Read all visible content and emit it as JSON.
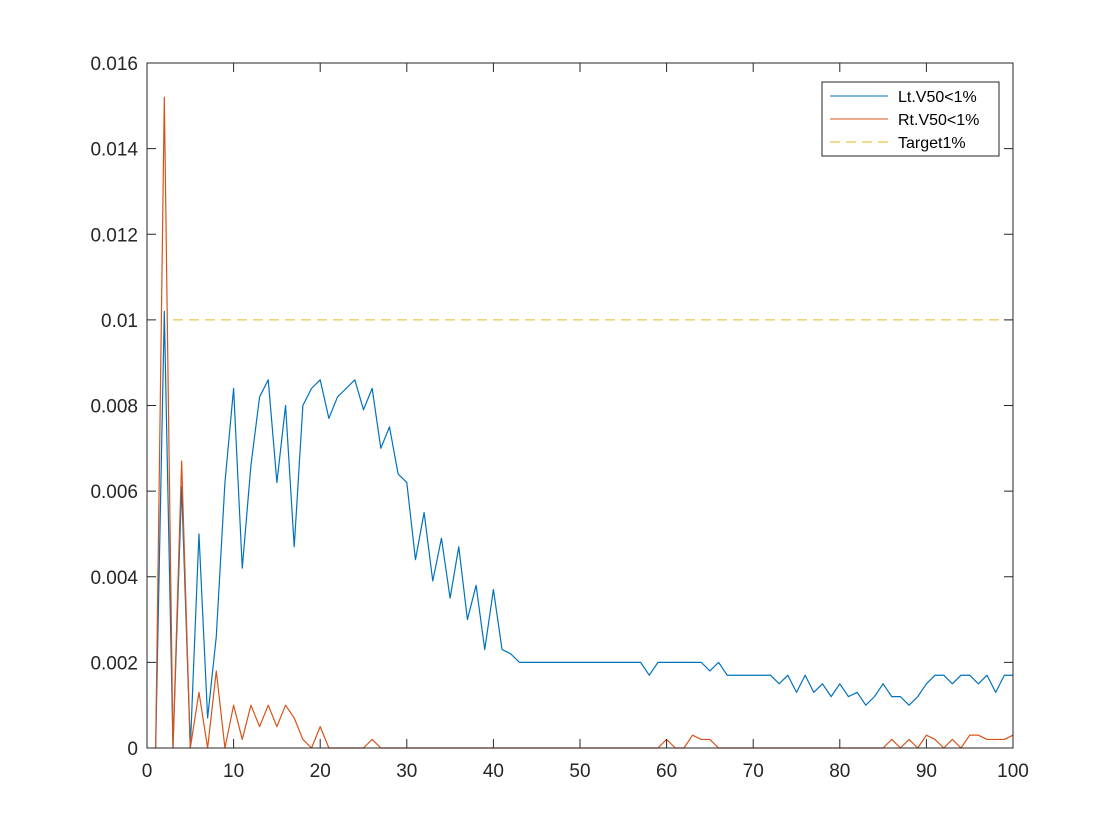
{
  "chart_data": {
    "type": "line",
    "title": "",
    "xlabel": "",
    "ylabel": "",
    "xlim": [
      0,
      100
    ],
    "ylim": [
      0,
      0.016
    ],
    "xticks": [
      "0",
      "10",
      "20",
      "30",
      "40",
      "50",
      "60",
      "70",
      "80",
      "90",
      "100"
    ],
    "yticks": [
      "0",
      "0.002",
      "0.004",
      "0.006",
      "0.008",
      "0.01",
      "0.012",
      "0.014",
      "0.016"
    ],
    "grid": false,
    "legend_position": "top-right",
    "series": [
      {
        "name": "Lt.V50<1%",
        "color": "#0072BD",
        "style": "solid",
        "x": [
          1,
          2,
          3,
          4,
          5,
          6,
          7,
          8,
          9,
          10,
          11,
          12,
          13,
          14,
          15,
          16,
          17,
          18,
          19,
          20,
          21,
          22,
          23,
          24,
          25,
          26,
          27,
          28,
          29,
          30,
          31,
          32,
          33,
          34,
          35,
          36,
          37,
          38,
          39,
          40,
          41,
          42,
          43,
          44,
          45,
          46,
          47,
          48,
          49,
          50,
          51,
          52,
          53,
          54,
          55,
          56,
          57,
          58,
          59,
          60,
          61,
          62,
          63,
          64,
          65,
          66,
          67,
          68,
          69,
          70,
          71,
          72,
          73,
          74,
          75,
          76,
          77,
          78,
          79,
          80,
          81,
          82,
          83,
          84,
          85,
          86,
          87,
          88,
          89,
          90,
          91,
          92,
          93,
          94,
          95,
          96,
          97,
          98,
          99,
          100
        ],
        "y": [
          0,
          0.0102,
          0,
          0.0061,
          0,
          0.005,
          0.0007,
          0.0026,
          0.0062,
          0.0084,
          0.0042,
          0.0066,
          0.0082,
          0.0086,
          0.0062,
          0.008,
          0.0047,
          0.008,
          0.0084,
          0.0086,
          0.0077,
          0.0082,
          0.0084,
          0.0086,
          0.0079,
          0.0084,
          0.007,
          0.0075,
          0.0064,
          0.0062,
          0.0044,
          0.0055,
          0.0039,
          0.0049,
          0.0035,
          0.0047,
          0.003,
          0.0038,
          0.0023,
          0.0037,
          0.0023,
          0.0022,
          0.002,
          0.002,
          0.002,
          0.002,
          0.002,
          0.002,
          0.002,
          0.002,
          0.002,
          0.002,
          0.002,
          0.002,
          0.002,
          0.002,
          0.002,
          0.0017,
          0.002,
          0.002,
          0.002,
          0.002,
          0.002,
          0.002,
          0.0018,
          0.002,
          0.0017,
          0.0017,
          0.0017,
          0.0017,
          0.0017,
          0.0017,
          0.0015,
          0.0017,
          0.0013,
          0.0017,
          0.0013,
          0.0015,
          0.0012,
          0.0015,
          0.0012,
          0.0013,
          0.001,
          0.0012,
          0.0015,
          0.0012,
          0.0012,
          0.001,
          0.0012,
          0.0015,
          0.0017,
          0.0017,
          0.0015,
          0.0017,
          0.0017,
          0.0015,
          0.0017,
          0.0013,
          0.0017,
          0.0017
        ]
      },
      {
        "name": "Rt.V50<1%",
        "color": "#D95319",
        "style": "solid",
        "x": [
          1,
          2,
          3,
          4,
          5,
          6,
          7,
          8,
          9,
          10,
          11,
          12,
          13,
          14,
          15,
          16,
          17,
          18,
          19,
          20,
          21,
          22,
          23,
          24,
          25,
          26,
          27,
          28,
          29,
          30,
          31,
          32,
          33,
          34,
          35,
          36,
          37,
          38,
          39,
          40,
          41,
          42,
          43,
          44,
          45,
          46,
          47,
          48,
          49,
          50,
          51,
          52,
          53,
          54,
          55,
          56,
          57,
          58,
          59,
          60,
          61,
          62,
          63,
          64,
          65,
          66,
          67,
          68,
          69,
          70,
          71,
          72,
          73,
          74,
          75,
          76,
          77,
          78,
          79,
          80,
          81,
          82,
          83,
          84,
          85,
          86,
          87,
          88,
          89,
          90,
          91,
          92,
          93,
          94,
          95,
          96,
          97,
          98,
          99,
          100
        ],
        "y": [
          0,
          0.0152,
          0,
          0.0067,
          0,
          0.0013,
          0,
          0.0018,
          0,
          0.001,
          0.0002,
          0.001,
          0.0005,
          0.001,
          0.0005,
          0.001,
          0.0007,
          0.0002,
          0,
          0.0005,
          0,
          0,
          0,
          0,
          0,
          0.0002,
          0,
          0,
          0,
          0,
          0,
          0,
          0,
          0,
          0,
          0,
          0,
          0,
          0,
          0,
          0,
          0,
          0,
          0,
          0,
          0,
          0,
          0,
          0,
          0,
          0,
          0,
          0,
          0,
          0,
          0,
          0,
          0,
          0,
          0.0002,
          0,
          0,
          0.0003,
          0.0002,
          0.0002,
          0,
          0,
          0,
          0,
          0,
          0,
          0,
          0,
          0,
          0,
          0,
          0,
          0,
          0,
          0,
          0,
          0,
          0,
          0,
          0,
          0.0002,
          0,
          0.0002,
          0,
          0.0003,
          0.0002,
          0,
          0.0002,
          0,
          0.0003,
          0.0003,
          0.0002,
          0.0002,
          0.0002,
          0.0003
        ]
      },
      {
        "name": "Target1%",
        "color": "#EDB120",
        "style": "dashed",
        "x": [
          3,
          100
        ],
        "y": [
          0.01,
          0.01
        ]
      }
    ]
  }
}
